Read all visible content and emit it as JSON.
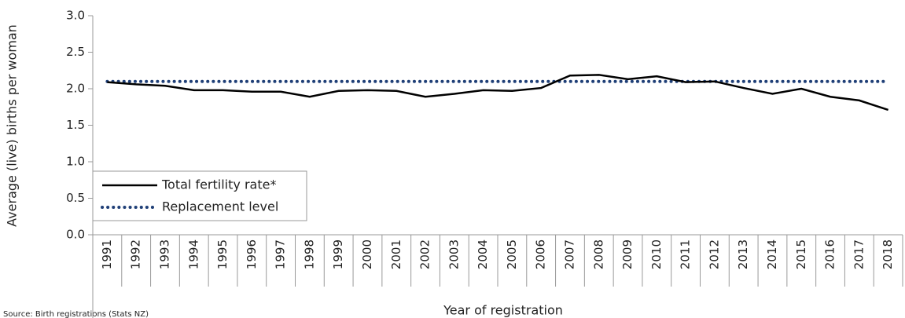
{
  "chart_data": {
    "type": "line",
    "x_label": "Year of registration",
    "y_label": "Average (live) births per woman",
    "source": "Source: Birth registrations (Stats NZ)",
    "categories": [
      "1991",
      "1992",
      "1993",
      "1994",
      "1995",
      "1996",
      "1997",
      "1998",
      "1999",
      "2000",
      "2001",
      "2002",
      "2003",
      "2004",
      "2005",
      "2006",
      "2007",
      "2008",
      "2009",
      "2010",
      "2011",
      "2012",
      "2013",
      "2014",
      "2015",
      "2016",
      "2017",
      "2018"
    ],
    "series": [
      {
        "name": "Total fertility rate*",
        "color": "#000000",
        "style": "solid",
        "values": [
          2.09,
          2.06,
          2.04,
          1.98,
          1.98,
          1.96,
          1.96,
          1.89,
          1.97,
          1.98,
          1.97,
          1.89,
          1.93,
          1.98,
          1.97,
          2.01,
          2.18,
          2.19,
          2.13,
          2.17,
          2.09,
          2.1,
          2.01,
          1.93,
          2.0,
          1.89,
          1.84,
          1.71
        ]
      },
      {
        "name": "Replacement level",
        "color": "#1f3f77",
        "style": "dotted",
        "values": [
          2.1,
          2.1,
          2.1,
          2.1,
          2.1,
          2.1,
          2.1,
          2.1,
          2.1,
          2.1,
          2.1,
          2.1,
          2.1,
          2.1,
          2.1,
          2.1,
          2.1,
          2.1,
          2.1,
          2.1,
          2.1,
          2.1,
          2.1,
          2.1,
          2.1,
          2.1,
          2.1,
          2.1
        ]
      }
    ],
    "ylim": [
      0,
      3
    ],
    "yticks": [
      {
        "value": 0,
        "label": "0.0"
      },
      0.5,
      {
        "value": 1,
        "label": "1.0"
      },
      1.5,
      {
        "value": 2,
        "label": "2.0"
      },
      2.5,
      {
        "value": 3,
        "label": "3.0"
      }
    ],
    "grid": false,
    "legend": "lower left"
  }
}
